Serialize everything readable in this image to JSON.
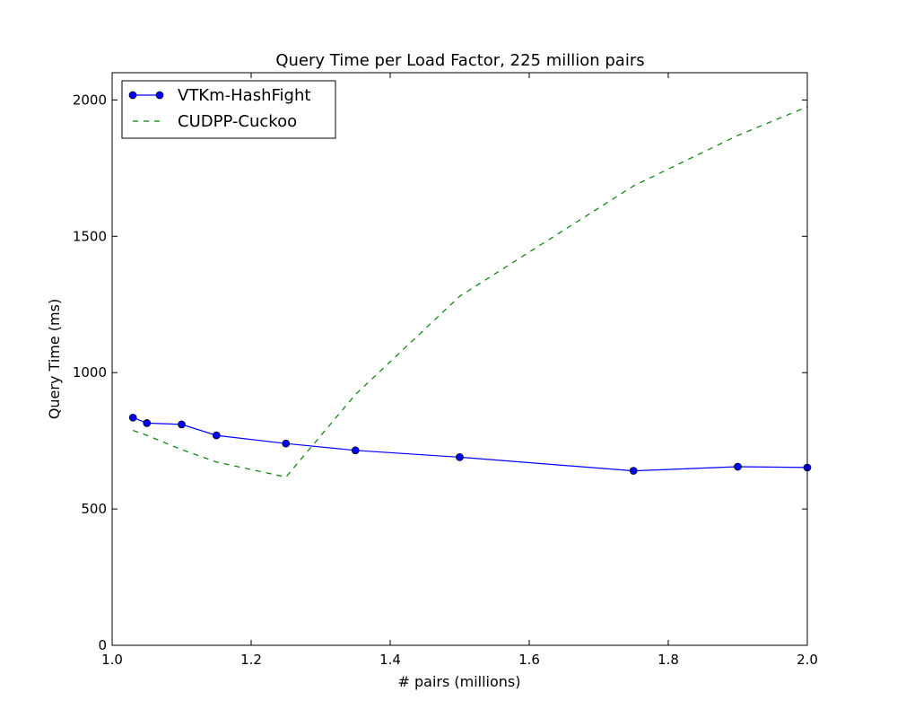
{
  "chart_data": {
    "type": "line",
    "title": "Query Time per Load Factor, 225 million pairs",
    "xlabel": "# pairs (millions)",
    "ylabel": "Query Time (ms)",
    "xlim": [
      1.0,
      2.0
    ],
    "ylim": [
      0,
      2100
    ],
    "xticks": [
      "1.0",
      "1.2",
      "1.4",
      "1.6",
      "1.8",
      "2.0"
    ],
    "yticks": [
      "0",
      "500",
      "1000",
      "1500",
      "2000"
    ],
    "grid": false,
    "legend_position": "top-left",
    "series": [
      {
        "name": "VTKm-HashFight",
        "color": "#0000ff",
        "style": "solid-with-circle-markers",
        "x": [
          1.03,
          1.05,
          1.1,
          1.15,
          1.25,
          1.35,
          1.5,
          1.75,
          1.9,
          2.0
        ],
        "y": [
          835,
          815,
          810,
          770,
          740,
          715,
          690,
          640,
          655,
          652
        ]
      },
      {
        "name": "CUDPP-Cuckoo",
        "color": "#008000",
        "style": "dashed",
        "x": [
          1.03,
          1.05,
          1.1,
          1.15,
          1.25,
          1.35,
          1.5,
          1.75,
          1.9,
          2.0
        ],
        "y": [
          788,
          770,
          718,
          672,
          617,
          920,
          1280,
          1685,
          1870,
          1975
        ]
      }
    ]
  }
}
